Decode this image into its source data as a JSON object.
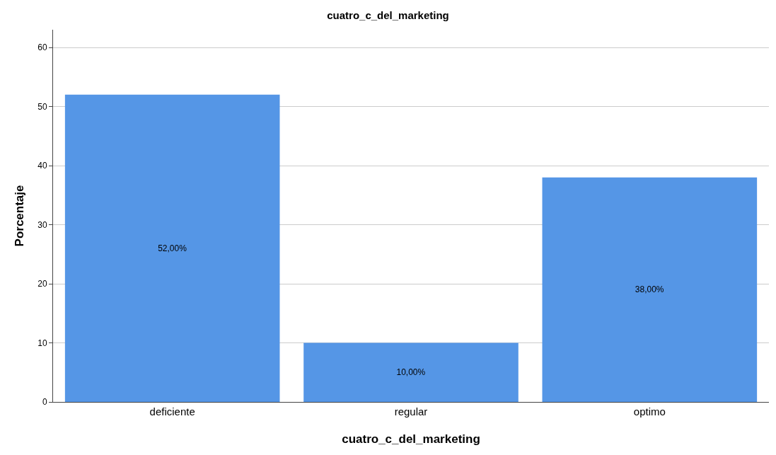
{
  "chart_data": {
    "type": "bar",
    "title": "cuatro_c_del_marketing",
    "xlabel": "cuatro_c_del_marketing",
    "ylabel": "Porcentaje",
    "categories": [
      "deficiente",
      "regular",
      "optimo"
    ],
    "values": [
      52,
      10,
      38
    ],
    "value_labels": [
      "52,00%",
      "10,00%",
      "38,00%"
    ],
    "color": "#5596e6",
    "ylim": [
      0,
      63
    ],
    "yticks": [
      0,
      10,
      20,
      30,
      40,
      50,
      60
    ],
    "grid": "y",
    "legend": false
  }
}
